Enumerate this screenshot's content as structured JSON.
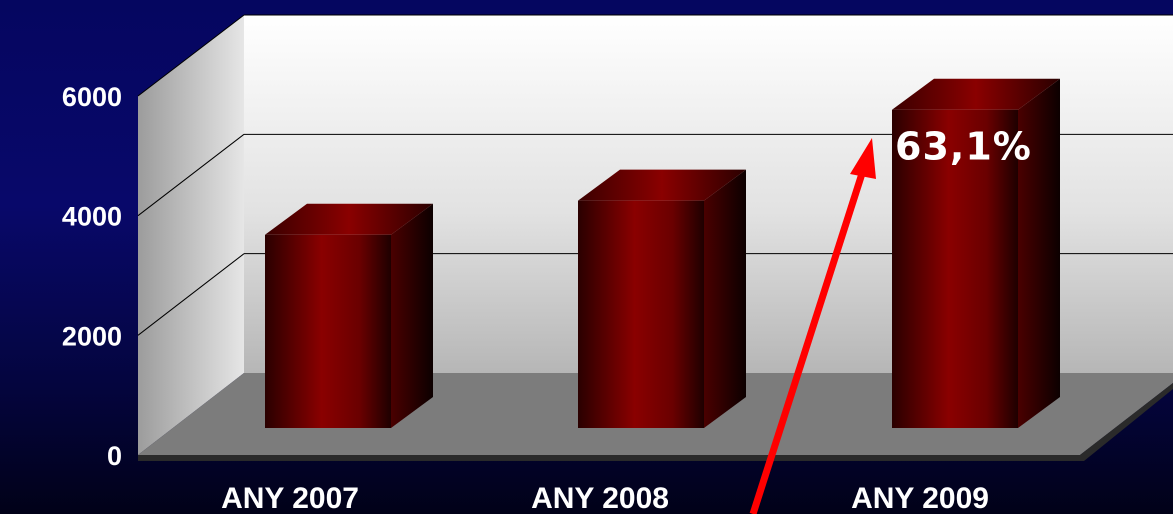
{
  "chart_data": {
    "type": "bar",
    "categories": [
      "ANY 2007",
      "ANY 2008",
      "ANY 2009"
    ],
    "values": [
      3400,
      4000,
      5600
    ],
    "ylim": [
      0,
      6000
    ],
    "yticks": [
      0,
      2000,
      4000,
      6000
    ],
    "ytick_labels": [
      "0",
      "2000",
      "4000",
      "6000"
    ],
    "grid": true,
    "legend": "none",
    "bar_color": "#7a0000",
    "annotations": [
      {
        "text": "63,1%",
        "category": "ANY 2009",
        "arrow": true
      }
    ]
  },
  "colors": {
    "background": "#06065e",
    "arrow": "#ff0000",
    "label": "#ffffff"
  }
}
